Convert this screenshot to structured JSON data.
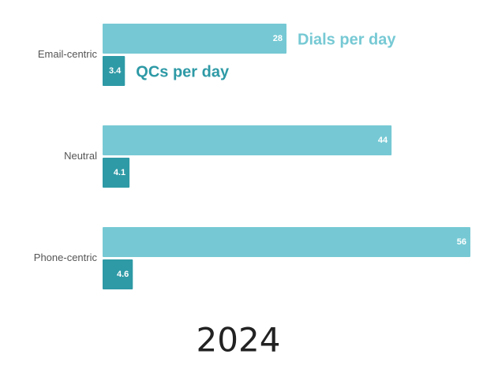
{
  "chart_data": {
    "type": "bar",
    "orientation": "horizontal",
    "title": "2024",
    "categories": [
      "Email-centric",
      "Neutral",
      "Phone-centric"
    ],
    "series": [
      {
        "name": "Dials per day",
        "color": "#76c9d4",
        "values": [
          28,
          44,
          56
        ]
      },
      {
        "name": "QCs per day",
        "color": "#2e9aa6",
        "values": [
          3.4,
          4.1,
          4.6
        ]
      }
    ]
  }
}
